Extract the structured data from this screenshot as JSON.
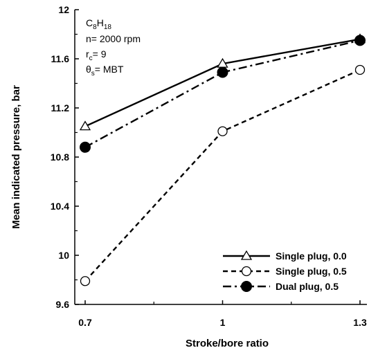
{
  "chart_data": {
    "type": "line",
    "title": "",
    "xlabel": "Stroke/bore ratio",
    "ylabel": "Mean indicated pressure, bar",
    "x": [
      0.7,
      1.0,
      1.3
    ],
    "x_tick_labels": [
      "0.7",
      "1",
      "1.3"
    ],
    "xlim": [
      0.7,
      1.3
    ],
    "ylim": [
      9.6,
      12.0
    ],
    "y_ticks": [
      9.6,
      10.0,
      10.4,
      10.8,
      11.2,
      11.6,
      12.0
    ],
    "y_tick_labels": [
      "9.6",
      "10",
      "10.4",
      "10.8",
      "11.2",
      "11.6",
      "12"
    ],
    "grid": false,
    "legend_position": "bottom-right",
    "annotation": {
      "fuel": "C8H18",
      "speed": "n= 2000 rpm",
      "compression": "rc= 9",
      "spark_timing": "θs= MBT"
    },
    "series": [
      {
        "name": "Single plug, 0.0",
        "values": [
          11.05,
          11.56,
          11.76
        ],
        "line_style": "solid",
        "marker": "open-triangle"
      },
      {
        "name": "Single plug, 0.5",
        "values": [
          9.79,
          11.01,
          11.51
        ],
        "line_style": "dashed",
        "marker": "open-circle"
      },
      {
        "name": "Dual plug, 0.5",
        "values": [
          10.88,
          11.49,
          11.75
        ],
        "line_style": "dash-dot",
        "marker": "filled-circle"
      }
    ]
  }
}
